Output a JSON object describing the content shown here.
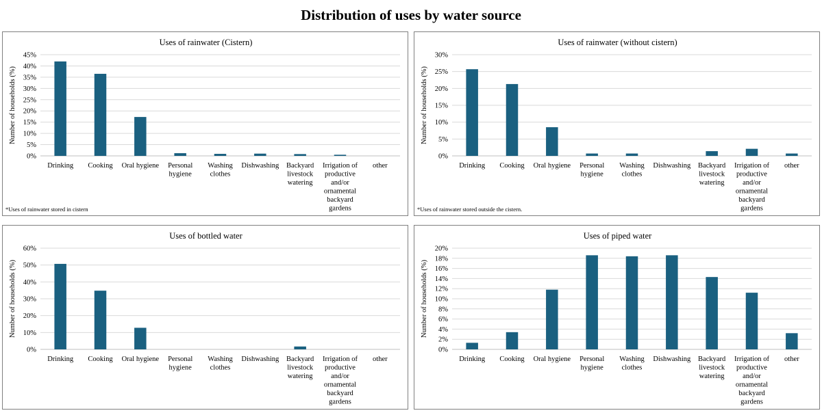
{
  "title": "Distribution of uses by water source",
  "colors": {
    "bar": "#1a6080",
    "grid": "#d9d9d9",
    "axis": "#bfbfbf"
  },
  "chart_data": [
    {
      "type": "bar",
      "title": "Uses of rainwater (Cistern)",
      "ylabel": "Number of households (%)",
      "xlabel": "",
      "categories": [
        "Drinking",
        "Cooking",
        "Oral hygiene",
        "Personal hygiene",
        "Washing clothes",
        "Dishwashing",
        "Backyard livestock watering",
        "Irrigation of productive and/or ornamental backyard gardens",
        "other"
      ],
      "category_lines": [
        [
          "Drinking"
        ],
        [
          "Cooking"
        ],
        [
          "Oral hygiene"
        ],
        [
          "Personal",
          "hygiene"
        ],
        [
          "Washing",
          "clothes"
        ],
        [
          "Dishwashing"
        ],
        [
          "Backyard",
          "livestock",
          "watering"
        ],
        [
          "Irrigation of",
          "productive",
          "and/or",
          "ornamental",
          "backyard",
          "gardens"
        ],
        [
          "other"
        ]
      ],
      "values": [
        42,
        36.5,
        17.3,
        1.2,
        0.9,
        1.0,
        0.8,
        0.5,
        0
      ],
      "ylim": [
        0,
        45
      ],
      "yticks": [
        0,
        5,
        10,
        15,
        20,
        25,
        30,
        35,
        40,
        45
      ],
      "ytick_labels": [
        "0%",
        "5%",
        "10%",
        "15%",
        "20%",
        "25%",
        "30%",
        "35%",
        "40%",
        "45%"
      ],
      "footnote": "*Uses of rainwater stored in cistern"
    },
    {
      "type": "bar",
      "title": "Uses of rainwater (without cistern)",
      "ylabel": "Number of households (%)",
      "xlabel": "",
      "categories": [
        "Drinking",
        "Cooking",
        "Oral hygiene",
        "Personal hygiene",
        "Washing clothes",
        "Dishwashing",
        "Backyard livestock watering",
        "Irrigation of productive and/or ornamental backyard gardens",
        "other"
      ],
      "category_lines": [
        [
          "Drinking"
        ],
        [
          "Cooking"
        ],
        [
          "Oral hygiene"
        ],
        [
          "Personal",
          "hygiene"
        ],
        [
          "Washing",
          "clothes"
        ],
        [
          "Dishwashing"
        ],
        [
          "Backyard",
          "livestock",
          "watering"
        ],
        [
          "Irrigation of",
          "productive",
          "and/or",
          "ornamental",
          "backyard",
          "gardens"
        ],
        [
          "other"
        ]
      ],
      "values": [
        25.7,
        21.3,
        8.5,
        0.7,
        0.7,
        0,
        1.4,
        2.1,
        0.7
      ],
      "ylim": [
        0,
        30
      ],
      "yticks": [
        0,
        5,
        10,
        15,
        20,
        25,
        30
      ],
      "ytick_labels": [
        "0%",
        "5%",
        "10%",
        "15%",
        "20%",
        "25%",
        "30%"
      ],
      "footnote": "*Uses of rainwater stored outside the cistern."
    },
    {
      "type": "bar",
      "title": "Uses of bottled water",
      "ylabel": "Number of households (%)",
      "xlabel": "",
      "categories": [
        "Drinking",
        "Cooking",
        "Oral hygiene",
        "Personal hygiene",
        "Washing clothes",
        "Dishwashing",
        "Backyard livestock watering",
        "Irrigation of productive and/or ornamental backyard gardens",
        "other"
      ],
      "category_lines": [
        [
          "Drinking"
        ],
        [
          "Cooking"
        ],
        [
          "Oral hygiene"
        ],
        [
          "Personal",
          "hygiene"
        ],
        [
          "Washing",
          "clothes"
        ],
        [
          "Dishwashing"
        ],
        [
          "Backyard",
          "livestock",
          "watering"
        ],
        [
          "Irrigation of",
          "productive",
          "and/or",
          "ornamental",
          "backyard",
          "gardens"
        ],
        [
          "other"
        ]
      ],
      "values": [
        50.7,
        34.8,
        12.8,
        0,
        0,
        0,
        1.7,
        0,
        0
      ],
      "ylim": [
        0,
        60
      ],
      "yticks": [
        0,
        10,
        20,
        30,
        40,
        50,
        60
      ],
      "ytick_labels": [
        "0%",
        "10%",
        "20%",
        "30%",
        "40%",
        "50%",
        "60%"
      ],
      "footnote": ""
    },
    {
      "type": "bar",
      "title": "Uses of piped water",
      "ylabel": "Number of households (%)",
      "xlabel": "",
      "categories": [
        "Drinking",
        "Cooking",
        "Oral hygiene",
        "Personal hygiene",
        "Washing clothes",
        "Dishwashing",
        "Backyard livestock watering",
        "Irrigation of productive and/or ornamental backyard gardens",
        "other"
      ],
      "category_lines": [
        [
          "Drinking"
        ],
        [
          "Cooking"
        ],
        [
          "Oral hygiene"
        ],
        [
          "Personal",
          "hygiene"
        ],
        [
          "Washing",
          "clothes"
        ],
        [
          "Dishwashing"
        ],
        [
          "Backyard",
          "livestock",
          "watering"
        ],
        [
          "Irrigation of",
          "productive",
          "and/or",
          "ornamental",
          "backyard",
          "gardens"
        ],
        [
          "other"
        ]
      ],
      "values": [
        1.3,
        3.4,
        11.8,
        18.6,
        18.4,
        18.6,
        14.3,
        11.2,
        3.2
      ],
      "ylim": [
        0,
        20
      ],
      "yticks": [
        0,
        2,
        4,
        6,
        8,
        10,
        12,
        14,
        16,
        18,
        20
      ],
      "ytick_labels": [
        "0%",
        "2%",
        "4%",
        "6%",
        "8%",
        "10%",
        "12%",
        "14%",
        "16%",
        "18%",
        "20%"
      ],
      "footnote": ""
    }
  ]
}
